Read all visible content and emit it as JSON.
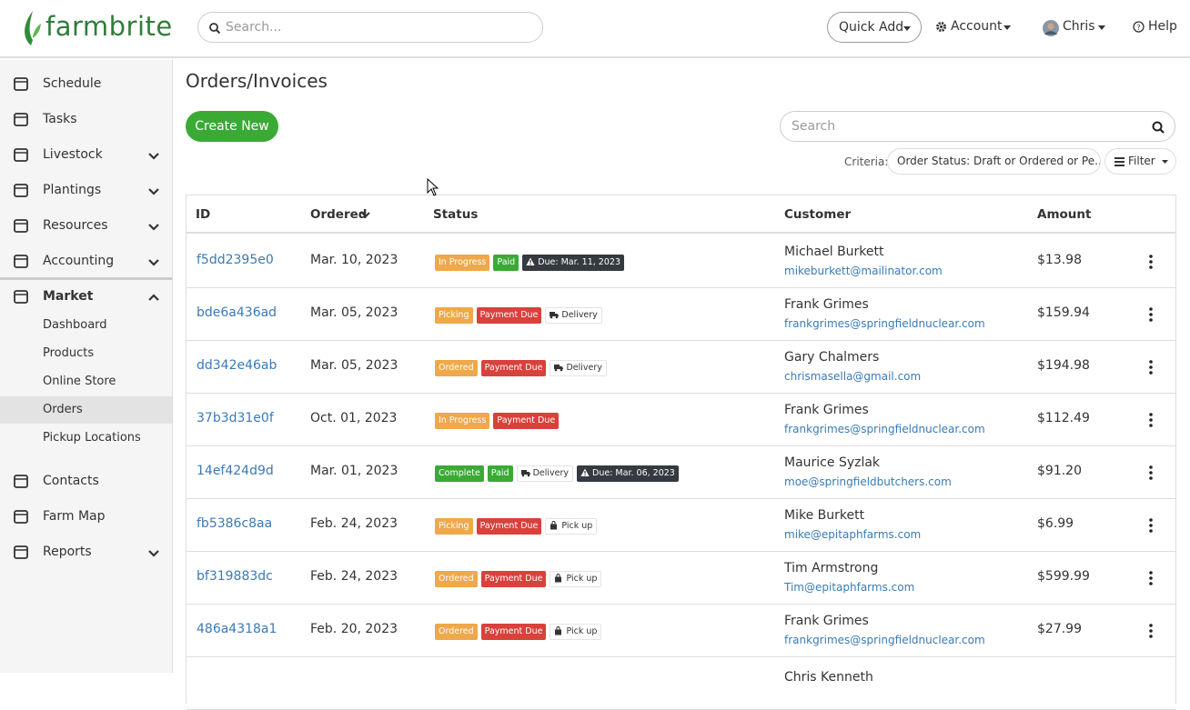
{
  "header": {
    "logo": "farmbrite",
    "search_placeholder": "Search...",
    "quick_add": "Quick Add",
    "account": "Account",
    "user": "Chris",
    "help": "Help"
  },
  "sidebar": {
    "items": [
      {
        "label": "Schedule"
      },
      {
        "label": "Tasks"
      },
      {
        "label": "Livestock",
        "expandable": true
      },
      {
        "label": "Plantings",
        "expandable": true
      },
      {
        "label": "Resources",
        "expandable": true
      },
      {
        "label": "Accounting",
        "expandable": true
      },
      {
        "label": "Market",
        "expandable": true,
        "expanded": true,
        "children": [
          "Dashboard",
          "Products",
          "Online Store",
          "Orders",
          "Pickup Locations"
        ],
        "active_child": 3
      },
      {
        "label": "Contacts"
      },
      {
        "label": "Farm Map"
      },
      {
        "label": "Reports",
        "expandable": true
      }
    ]
  },
  "page": {
    "title": "Orders/Invoices",
    "create": "Create New",
    "search_placeholder": "Search",
    "criteria_label": "Criteria:",
    "criteria": "Order Status: Draft or Ordered or Pe...",
    "filter": "Filter"
  },
  "table": {
    "columns": [
      "ID",
      "Ordered",
      "Status",
      "Customer",
      "Amount"
    ],
    "rows": [
      {
        "id": "f5dd2395e0",
        "ordered": "Mar. 10, 2023",
        "badges": [
          {
            "text": "In Progress",
            "color": "#efa84a"
          },
          {
            "text": "Paid",
            "color": "#3aaa35"
          },
          {
            "text": "Due: Mar. 11, 2023",
            "color": "#343a40",
            "icon": "warning"
          }
        ],
        "customer": "Michael Burkett",
        "email": "mikeburkett@mailinator.com",
        "amount": "$13.98"
      },
      {
        "id": "bde6a436ad",
        "ordered": "Mar. 05, 2023",
        "badges": [
          {
            "text": "Picking",
            "color": "#efa84a"
          },
          {
            "text": "Payment Due",
            "color": "#d9413b"
          },
          {
            "text": "Delivery",
            "color": "#ffffff",
            "icon": "truck"
          }
        ],
        "customer": "Frank Grimes",
        "email": "frankgrimes@springfieldnuclear.com",
        "amount": "$159.94"
      },
      {
        "id": "dd342e46ab",
        "ordered": "Mar. 05, 2023",
        "badges": [
          {
            "text": "Ordered",
            "color": "#efa84a"
          },
          {
            "text": "Payment Due",
            "color": "#d9413b"
          },
          {
            "text": "Delivery",
            "color": "#ffffff",
            "icon": "truck"
          }
        ],
        "customer": "Gary Chalmers",
        "email": "chrismasella@gmail.com",
        "amount": "$194.98"
      },
      {
        "id": "37b3d31e0f",
        "ordered": "Oct. 01, 2023",
        "badges": [
          {
            "text": "In Progress",
            "color": "#efa84a"
          },
          {
            "text": "Payment Due",
            "color": "#d9413b"
          }
        ],
        "customer": "Frank Grimes",
        "email": "frankgrimes@springfieldnuclear.com",
        "amount": "$112.49"
      },
      {
        "id": "14ef424d9d",
        "ordered": "Mar. 01, 2023",
        "badges": [
          {
            "text": "Complete",
            "color": "#3aaa35"
          },
          {
            "text": "Paid",
            "color": "#3aaa35"
          },
          {
            "text": "Delivery",
            "color": "#ffffff",
            "icon": "truck"
          },
          {
            "text": "Due: Mar. 06, 2023",
            "color": "#343a40",
            "icon": "warning"
          }
        ],
        "customer": "Maurice Syzlak",
        "email": "moe@springfieldbutchers.com",
        "amount": "$91.20"
      },
      {
        "id": "fb5386c8aa",
        "ordered": "Feb. 24, 2023",
        "badges": [
          {
            "text": "Picking",
            "color": "#efa84a"
          },
          {
            "text": "Payment Due",
            "color": "#d9413b"
          },
          {
            "text": "Pick up",
            "color": "#ffffff",
            "icon": "bag"
          }
        ],
        "customer": "Mike Burkett",
        "email": "mike@epitaphfarms.com",
        "amount": "$6.99"
      },
      {
        "id": "bf319883dc",
        "ordered": "Feb. 24, 2023",
        "badges": [
          {
            "text": "Ordered",
            "color": "#efa84a"
          },
          {
            "text": "Payment Due",
            "color": "#d9413b"
          },
          {
            "text": "Pick up",
            "color": "#ffffff",
            "icon": "bag"
          }
        ],
        "customer": "Tim Armstrong",
        "email": "Tim@epitaphfarms.com",
        "amount": "$599.99"
      },
      {
        "id": "486a4318a1",
        "ordered": "Feb. 20, 2023",
        "badges": [
          {
            "text": "Ordered",
            "color": "#efa84a"
          },
          {
            "text": "Payment Due",
            "color": "#d9413b"
          },
          {
            "text": "Pick up",
            "color": "#ffffff",
            "icon": "bag"
          }
        ],
        "customer": "Frank Grimes",
        "email": "frankgrimes@springfieldnuclear.com",
        "amount": "$27.99"
      },
      {
        "customer": "Chris Kenneth"
      }
    ]
  }
}
